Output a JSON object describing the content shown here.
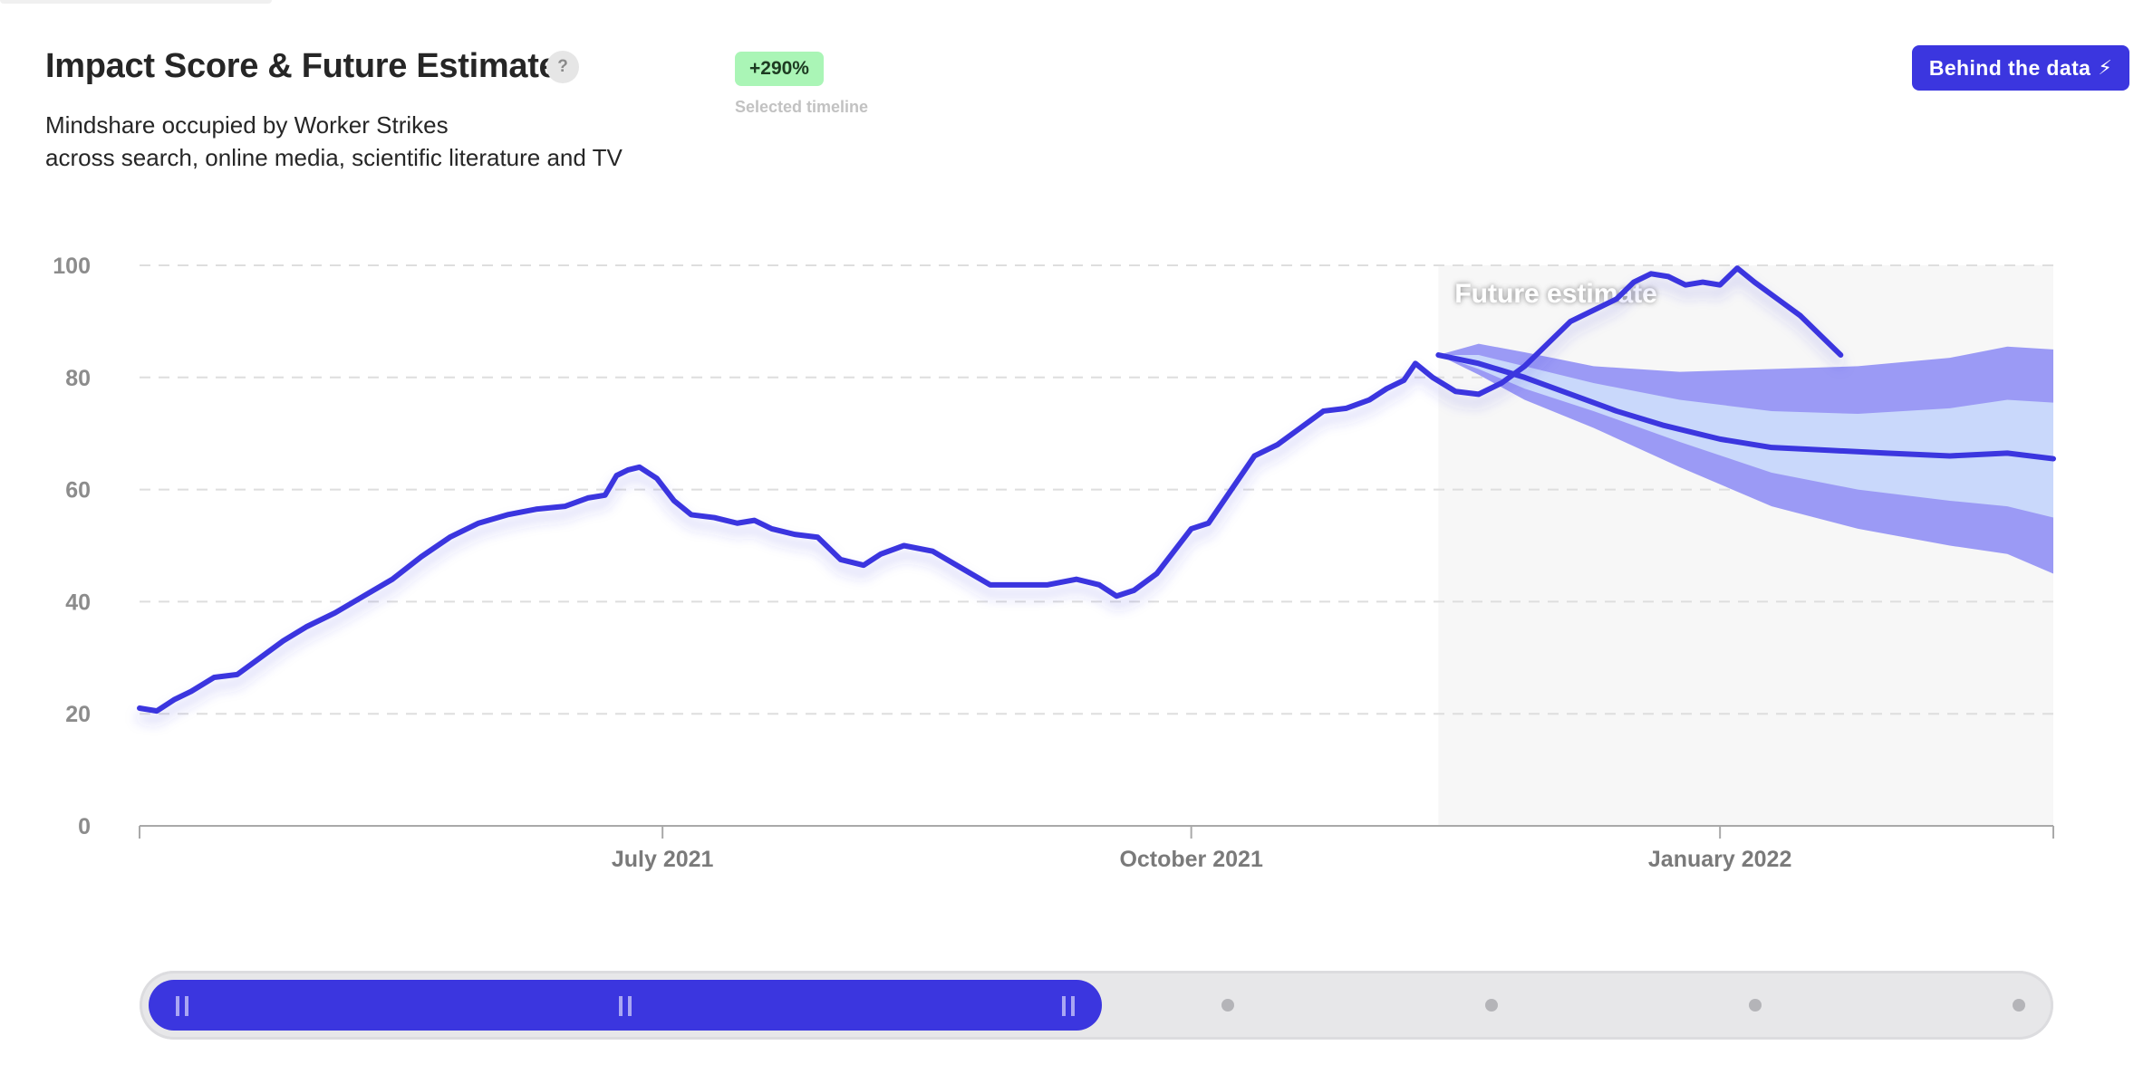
{
  "header": {
    "title": "Impact Score & Future Estimate",
    "help_glyph": "?",
    "subtitle_line1": "Mindshare occupied by Worker Strikes",
    "subtitle_line2": "across search, online media, scientific literature and TV",
    "badge": "+290%",
    "badge_caption": "Selected timeline",
    "badge_color": "#aaf5b6",
    "button_label": "Behind the data",
    "button_icon": "lightning-bolt-icon",
    "accent_color": "#3b36df"
  },
  "chart_data": {
    "type": "line",
    "title": "",
    "xlabel": "",
    "ylabel": "",
    "ylim": [
      0,
      100
    ],
    "yticks": [
      0,
      20,
      40,
      60,
      80,
      100
    ],
    "xlim": [
      "2021-04-01",
      "2022-02-28"
    ],
    "xticks": [
      {
        "label": "July 2021",
        "date": "2021-07-01"
      },
      {
        "label": "October 2021",
        "date": "2021-10-01"
      },
      {
        "label": "January 2022",
        "date": "2022-01-01"
      }
    ],
    "grid": true,
    "series": [
      {
        "role": "observed",
        "color": "#3b36df",
        "points": [
          [
            "2021-04-01",
            21
          ],
          [
            "2021-04-04",
            20.5
          ],
          [
            "2021-04-07",
            22.5
          ],
          [
            "2021-04-10",
            24
          ],
          [
            "2021-04-14",
            26.5
          ],
          [
            "2021-04-18",
            27
          ],
          [
            "2021-04-22",
            30
          ],
          [
            "2021-04-26",
            33
          ],
          [
            "2021-04-30",
            35.5
          ],
          [
            "2021-05-05",
            38
          ],
          [
            "2021-05-10",
            41
          ],
          [
            "2021-05-15",
            44
          ],
          [
            "2021-05-20",
            48
          ],
          [
            "2021-05-25",
            51.5
          ],
          [
            "2021-05-30",
            54
          ],
          [
            "2021-06-04",
            55.5
          ],
          [
            "2021-06-09",
            56.5
          ],
          [
            "2021-06-14",
            57
          ],
          [
            "2021-06-18",
            58.5
          ],
          [
            "2021-06-21",
            59
          ],
          [
            "2021-06-23",
            62.5
          ],
          [
            "2021-06-25",
            63.5
          ],
          [
            "2021-06-27",
            64
          ],
          [
            "2021-06-30",
            62
          ],
          [
            "2021-07-03",
            58
          ],
          [
            "2021-07-06",
            55.5
          ],
          [
            "2021-07-10",
            55
          ],
          [
            "2021-07-14",
            54
          ],
          [
            "2021-07-17",
            54.5
          ],
          [
            "2021-07-20",
            53
          ],
          [
            "2021-07-24",
            52
          ],
          [
            "2021-07-28",
            51.5
          ],
          [
            "2021-08-01",
            47.5
          ],
          [
            "2021-08-05",
            46.5
          ],
          [
            "2021-08-08",
            48.5
          ],
          [
            "2021-08-12",
            50
          ],
          [
            "2021-08-17",
            49
          ],
          [
            "2021-08-22",
            46
          ],
          [
            "2021-08-27",
            43
          ],
          [
            "2021-09-01",
            43
          ],
          [
            "2021-09-06",
            43
          ],
          [
            "2021-09-11",
            44
          ],
          [
            "2021-09-15",
            43
          ],
          [
            "2021-09-18",
            41
          ],
          [
            "2021-09-21",
            42
          ],
          [
            "2021-09-25",
            45
          ],
          [
            "2021-09-28",
            49
          ],
          [
            "2021-10-01",
            53
          ],
          [
            "2021-10-04",
            54
          ],
          [
            "2021-10-08",
            60
          ],
          [
            "2021-10-12",
            66
          ],
          [
            "2021-10-16",
            68
          ],
          [
            "2021-10-20",
            71
          ],
          [
            "2021-10-24",
            74
          ],
          [
            "2021-10-28",
            74.5
          ],
          [
            "2021-11-01",
            76
          ],
          [
            "2021-11-04",
            78
          ],
          [
            "2021-11-07",
            79.5
          ],
          [
            "2021-11-09",
            82.5
          ],
          [
            "2021-11-12",
            80
          ],
          [
            "2021-11-16",
            77.5
          ],
          [
            "2021-11-20",
            77
          ],
          [
            "2021-11-24",
            79
          ],
          [
            "2021-11-28",
            82
          ],
          [
            "2021-12-02",
            86
          ],
          [
            "2021-12-06",
            90
          ],
          [
            "2021-12-10",
            92
          ],
          [
            "2021-12-14",
            94
          ],
          [
            "2021-12-17",
            97
          ],
          [
            "2021-12-20",
            98.5
          ],
          [
            "2021-12-23",
            98
          ],
          [
            "2021-12-26",
            96.5
          ],
          [
            "2021-12-29",
            97
          ],
          [
            "2022-01-01",
            96.5
          ],
          [
            "2022-01-04",
            99.5
          ],
          [
            "2022-01-07",
            97
          ],
          [
            "2022-01-11",
            94
          ],
          [
            "2022-01-15",
            91
          ],
          [
            "2022-01-19",
            87
          ],
          [
            "2022-01-22",
            84
          ]
        ]
      },
      {
        "role": "forecast",
        "color": "#3b36df",
        "points": [
          [
            "2021-11-13",
            84
          ],
          [
            "2021-11-20",
            82.5
          ],
          [
            "2021-11-28",
            80
          ],
          [
            "2021-12-06",
            77
          ],
          [
            "2021-12-14",
            74
          ],
          [
            "2021-12-22",
            71.5
          ],
          [
            "2022-01-01",
            69
          ],
          [
            "2022-01-10",
            67.5
          ],
          [
            "2022-01-20",
            67
          ],
          [
            "2022-01-30",
            66.5
          ],
          [
            "2022-02-10",
            66
          ],
          [
            "2022-02-20",
            66.5
          ],
          [
            "2022-02-28",
            65.5
          ]
        ]
      }
    ],
    "forecast_start": "2021-11-13",
    "forecast_label": "Future estimate",
    "confidence_bands": [
      {
        "level": "outer",
        "color": "#9b9af5",
        "upper": [
          [
            "2021-11-13",
            84
          ],
          [
            "2021-11-20",
            86
          ],
          [
            "2021-11-28",
            84.5
          ],
          [
            "2021-12-10",
            82
          ],
          [
            "2021-12-25",
            81
          ],
          [
            "2022-01-10",
            81.5
          ],
          [
            "2022-01-25",
            82
          ],
          [
            "2022-02-10",
            83.5
          ],
          [
            "2022-02-20",
            85.5
          ],
          [
            "2022-02-28",
            85
          ]
        ],
        "lower": [
          [
            "2021-11-13",
            84
          ],
          [
            "2021-11-20",
            80.5
          ],
          [
            "2021-11-28",
            76
          ],
          [
            "2021-12-10",
            71
          ],
          [
            "2021-12-25",
            64
          ],
          [
            "2022-01-10",
            57
          ],
          [
            "2022-01-25",
            53
          ],
          [
            "2022-02-10",
            50
          ],
          [
            "2022-02-20",
            48.5
          ],
          [
            "2022-02-28",
            45
          ]
        ]
      },
      {
        "level": "inner",
        "color": "#c9d8fb",
        "upper": [
          [
            "2021-11-13",
            84
          ],
          [
            "2021-11-20",
            84
          ],
          [
            "2021-11-28",
            82
          ],
          [
            "2021-12-10",
            79
          ],
          [
            "2021-12-25",
            76
          ],
          [
            "2022-01-10",
            74
          ],
          [
            "2022-01-25",
            73.5
          ],
          [
            "2022-02-10",
            74.5
          ],
          [
            "2022-02-20",
            76
          ],
          [
            "2022-02-28",
            75.5
          ]
        ],
        "lower": [
          [
            "2021-11-13",
            84
          ],
          [
            "2021-11-20",
            81.5
          ],
          [
            "2021-11-28",
            78
          ],
          [
            "2021-12-10",
            74
          ],
          [
            "2021-12-25",
            68.5
          ],
          [
            "2022-01-10",
            63
          ],
          [
            "2022-01-25",
            60
          ],
          [
            "2022-02-10",
            58
          ],
          [
            "2022-02-20",
            57
          ],
          [
            "2022-02-28",
            55
          ]
        ]
      }
    ]
  },
  "range_slider": {
    "selected_fraction": [
      0,
      0.5
    ],
    "steps": 7
  }
}
